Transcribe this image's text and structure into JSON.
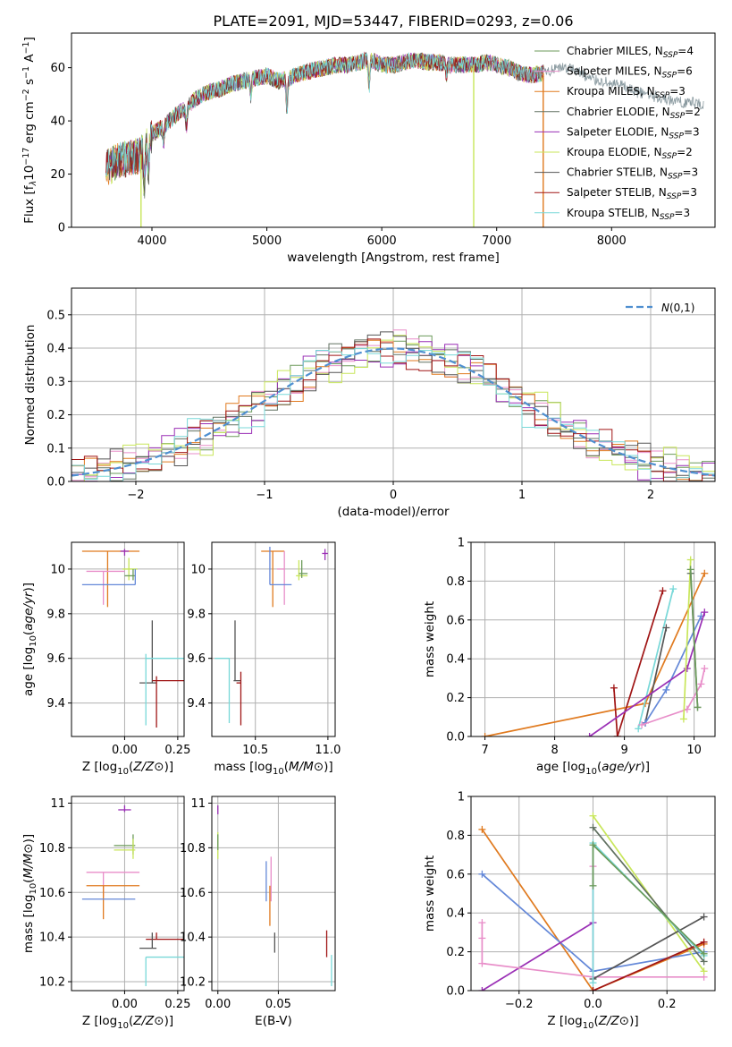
{
  "figure": {
    "title": "PLATE=2091, MJD=53447, FIBERID=0293, z=0.06"
  },
  "colors": {
    "Chabrier MILES": "#6b9a5a",
    "Salpeter MILES": "#e88ec9",
    "Kroupa MILES": "#e07a1f",
    "Chabrier ELODIE": "#607060",
    "Salpeter ELODIE": "#9a2fb5",
    "Kroupa ELODIE": "#c8e65a",
    "Chabrier STELIB": "#555555",
    "Salpeter STELIB": "#a01515",
    "Kroupa STELIB": "#78d8d8",
    "extra_blue": "#6488d8",
    "normal_dashed": "#4f8fd0"
  },
  "chart_data": [
    {
      "id": "spectrum",
      "type": "line",
      "title": "PLATE=2091, MJD=53447, FIBERID=0293, z=0.06",
      "xlabel": "wavelength [Angstrom, rest frame]",
      "ylabel_parts": [
        "Flux [f",
        "λ",
        "10",
        "−17",
        " erg cm",
        "−2",
        " s",
        "−1",
        " A",
        "−1",
        "]"
      ],
      "xlim": [
        3300,
        8900
      ],
      "ylim": [
        0,
        73
      ],
      "xticks": [
        4000,
        5000,
        6000,
        7000,
        8000
      ],
      "yticks": [
        0,
        20,
        40,
        60
      ],
      "grid": false,
      "legend_position": "top-right",
      "legend": [
        {
          "model": "Chabrier MILES",
          "n_ssp": 4
        },
        {
          "model": "Salpeter MILES",
          "n_ssp": 6
        },
        {
          "model": "Kroupa MILES",
          "n_ssp": 3
        },
        {
          "model": "Chabrier ELODIE",
          "n_ssp": 2
        },
        {
          "model": "Salpeter ELODIE",
          "n_ssp": 3
        },
        {
          "model": "Kroupa ELODIE",
          "n_ssp": 2
        },
        {
          "model": "Chabrier STELIB",
          "n_ssp": 3
        },
        {
          "model": "Salpeter STELIB",
          "n_ssp": 3
        },
        {
          "model": "Kroupa STELIB",
          "n_ssp": 3
        }
      ],
      "legend_ssp_label": {
        "prefix": "N",
        "sub": "SSP",
        "eq": "="
      },
      "continuum": {
        "x": [
          3600,
          3700,
          3800,
          3900,
          4000,
          4100,
          4200,
          4300,
          4400,
          4500,
          4600,
          4700,
          4800,
          4900,
          5000,
          5100,
          5200,
          5300,
          5400,
          5500,
          5600,
          5700,
          5800,
          5900,
          6000,
          6100,
          6200,
          6300,
          6400,
          6500,
          6600,
          6700,
          6800,
          6900,
          7000,
          7100,
          7200,
          7300,
          7400,
          7500,
          7600,
          7700,
          7800,
          7900,
          8000,
          8100,
          8200,
          8300,
          8400,
          8500,
          8600,
          8700,
          8800
        ],
        "y": [
          22,
          25,
          26,
          27,
          35,
          38,
          42,
          45,
          49,
          51,
          52,
          54,
          55,
          56,
          57,
          55,
          56,
          58,
          59,
          60,
          61,
          61,
          62,
          63,
          61,
          61,
          62,
          63,
          62,
          62,
          61,
          61,
          61,
          62,
          61,
          60,
          58,
          57,
          58,
          59,
          60,
          59,
          56,
          55,
          54,
          53,
          51,
          50,
          49,
          48,
          47,
          47,
          46
        ]
      },
      "absorption_features": [
        {
          "x": 3933,
          "depth": 14
        },
        {
          "x": 3968,
          "depth": 12
        },
        {
          "x": 4102,
          "depth": 6
        },
        {
          "x": 4300,
          "depth": 7
        },
        {
          "x": 4861,
          "depth": 6
        },
        {
          "x": 5175,
          "depth": 11
        },
        {
          "x": 5890,
          "depth": 10
        },
        {
          "x": 6563,
          "depth": 4
        }
      ],
      "model_dropouts": [
        {
          "model": "Kroupa ELODIE",
          "x": 3905
        },
        {
          "model": "Kroupa ELODIE",
          "x": 6800
        },
        {
          "model": "Kroupa MILES",
          "x": 7405
        }
      ],
      "data_end_x": 7410,
      "data_tail_x_end": 8800
    },
    {
      "id": "residuals",
      "type": "histogram",
      "xlabel": "(data-model)/error",
      "ylabel": "Normed distribution",
      "xlim": [
        -2.5,
        2.5
      ],
      "ylim": [
        0,
        0.58
      ],
      "xticks": [
        -2,
        -1,
        0,
        1,
        2
      ],
      "yticks": [
        0,
        0.1,
        0.2,
        0.3,
        0.4,
        0.5
      ],
      "grid": true,
      "legend_position": "top-right",
      "legend_label": "N(0,1)",
      "bin_width": 0.1,
      "bin_start": -2.5,
      "histogram_jitter": [
        {
          "model": "Chabrier MILES",
          "phase": 0.3,
          "amp": 0.03
        },
        {
          "model": "Salpeter MILES",
          "phase": 1.7,
          "amp": 0.035
        },
        {
          "model": "Kroupa MILES",
          "phase": 2.9,
          "amp": 0.04
        },
        {
          "model": "Chabrier ELODIE",
          "phase": 4.1,
          "amp": 0.03
        },
        {
          "model": "Salpeter ELODIE",
          "phase": 5.3,
          "amp": 0.04
        },
        {
          "model": "Kroupa ELODIE",
          "phase": 0.9,
          "amp": 0.045
        },
        {
          "model": "Chabrier STELIB",
          "phase": 2.2,
          "amp": 0.035
        },
        {
          "model": "Salpeter STELIB",
          "phase": 3.6,
          "amp": 0.04
        },
        {
          "model": "Kroupa STELIB",
          "phase": 4.8,
          "amp": 0.045
        }
      ]
    },
    {
      "id": "age_vs_Z",
      "type": "errorbar",
      "xlabel": "Z [log10(Z/Z⊙)]",
      "ylabel": "age  [log10(age/yr)]",
      "xlim": [
        -0.25,
        0.28
      ],
      "ylim": [
        9.25,
        10.12
      ],
      "xticks": [
        0.0,
        0.25
      ],
      "xtick_labels": [
        "0.00",
        "0.25"
      ],
      "yticks": [
        9.4,
        9.6,
        9.8,
        10.0
      ],
      "grid": true,
      "points": [
        {
          "model": "Kroupa MILES",
          "x": -0.08,
          "y": 10.08,
          "xlo": -0.2,
          "xhi": 0.07,
          "ylo": 9.83,
          "yhi": 10.08
        },
        {
          "model": "Salpeter ELODIE",
          "x": 0.0,
          "y": 10.08,
          "xlo": -0.02,
          "xhi": 0.02,
          "ylo": 10.06,
          "yhi": 10.09
        },
        {
          "model": "Salpeter MILES",
          "x": -0.1,
          "y": 9.99,
          "xlo": -0.18,
          "xhi": 0.0,
          "ylo": 9.84,
          "yhi": 9.99
        },
        {
          "model": "Kroupa ELODIE",
          "x": 0.02,
          "y": 10.0,
          "xlo": -0.01,
          "xhi": 0.06,
          "ylo": 9.95,
          "yhi": 10.05
        },
        {
          "model": "Chabrier MILES",
          "x": 0.04,
          "y": 9.97,
          "xlo": 0.0,
          "xhi": 0.05,
          "ylo": 9.95,
          "yhi": 10.0
        },
        {
          "model": "extra_blue",
          "x": 0.05,
          "y": 9.93,
          "xlo": -0.2,
          "xhi": 0.05,
          "ylo": 9.93,
          "yhi": 10.0
        },
        {
          "model": "Chabrier STELIB",
          "x": 0.13,
          "y": 9.49,
          "xlo": 0.07,
          "xhi": 0.15,
          "ylo": 9.49,
          "yhi": 9.77
        },
        {
          "model": "Salpeter STELIB",
          "x": 0.15,
          "y": 9.5,
          "xlo": 0.13,
          "xhi": 0.28,
          "ylo": 9.29,
          "yhi": 9.52
        },
        {
          "model": "Kroupa STELIB",
          "x": 0.1,
          "y": 9.6,
          "xlo": 0.1,
          "xhi": 0.28,
          "ylo": 9.3,
          "yhi": 9.62
        }
      ]
    },
    {
      "id": "age_vs_mass",
      "type": "errorbar",
      "xlabel": "mass [log10(M/M⊙)]",
      "ylabel": "",
      "xlim": [
        10.2,
        11.05
      ],
      "ylim": [
        9.25,
        10.12
      ],
      "xticks": [
        10.5,
        11.0
      ],
      "xtick_labels": [
        "10.5",
        "11.0"
      ],
      "yticks": [
        9.4,
        9.6,
        9.8,
        10.0
      ],
      "grid": true,
      "points": [
        {
          "model": "Kroupa MILES",
          "x": 10.62,
          "y": 10.08,
          "xlo": 10.54,
          "xhi": 10.7,
          "ylo": 9.83,
          "yhi": 10.08
        },
        {
          "model": "Salpeter MILES",
          "x": 10.7,
          "y": 10.0,
          "xlo": 10.65,
          "xhi": 10.7,
          "ylo": 9.84,
          "yhi": 10.08
        },
        {
          "model": "extra_blue",
          "x": 10.6,
          "y": 9.93,
          "xlo": 10.6,
          "xhi": 10.75,
          "ylo": 9.93,
          "yhi": 10.1
        },
        {
          "model": "Kroupa ELODIE",
          "x": 10.8,
          "y": 9.97,
          "xlo": 10.78,
          "xhi": 10.86,
          "ylo": 9.95,
          "yhi": 10.04
        },
        {
          "model": "Chabrier MILES",
          "x": 10.82,
          "y": 9.98,
          "xlo": 10.8,
          "xhi": 10.86,
          "ylo": 9.96,
          "yhi": 10.04
        },
        {
          "model": "Salpeter ELODIE",
          "x": 10.98,
          "y": 10.07,
          "xlo": 10.96,
          "xhi": 11.0,
          "ylo": 10.04,
          "yhi": 10.09
        },
        {
          "model": "Chabrier STELIB",
          "x": 10.36,
          "y": 9.5,
          "xlo": 10.35,
          "xhi": 10.4,
          "ylo": 9.5,
          "yhi": 9.77
        },
        {
          "model": "Salpeter STELIB",
          "x": 10.4,
          "y": 9.49,
          "xlo": 10.37,
          "xhi": 10.4,
          "ylo": 9.3,
          "yhi": 9.54
        },
        {
          "model": "Kroupa STELIB",
          "x": 10.32,
          "y": 9.6,
          "xlo": 10.22,
          "xhi": 10.32,
          "ylo": 9.31,
          "yhi": 9.6
        }
      ]
    },
    {
      "id": "massweight_vs_age",
      "type": "line",
      "xlabel": "age  [log10(age/yr)]",
      "ylabel": "mass weight",
      "xlim": [
        6.8,
        10.3
      ],
      "ylim": [
        0,
        1.0
      ],
      "xticks": [
        7,
        8,
        9,
        10
      ],
      "yticks": [
        0,
        0.2,
        0.4,
        0.6,
        0.8,
        1.0
      ],
      "grid": true,
      "series": [
        {
          "model": "Kroupa MILES",
          "x": [
            7.0,
            9.3,
            10.15
          ],
          "y": [
            0.0,
            0.17,
            0.84
          ]
        },
        {
          "model": "Salpeter STELIB",
          "x": [
            8.9,
            9.55
          ],
          "y": [
            0.0,
            0.75
          ]
        },
        {
          "model": "Salpeter STELIB",
          "x": [
            8.85,
            8.9
          ],
          "y": [
            0.25,
            0.0
          ]
        },
        {
          "model": "Kroupa STELIB",
          "x": [
            9.2,
            9.7
          ],
          "y": [
            0.04,
            0.76
          ]
        },
        {
          "model": "Chabrier STELIB",
          "x": [
            9.3,
            9.6
          ],
          "y": [
            0.07,
            0.56
          ]
        },
        {
          "model": "extra_blue",
          "x": [
            9.3,
            9.6,
            10.1
          ],
          "y": [
            0.07,
            0.24,
            0.62
          ]
        },
        {
          "model": "Salpeter ELODIE",
          "x": [
            8.5,
            9.9,
            10.15
          ],
          "y": [
            0.0,
            0.35,
            0.64
          ]
        },
        {
          "model": "Salpeter MILES",
          "x": [
            9.25,
            9.9,
            10.1,
            10.15
          ],
          "y": [
            0.06,
            0.14,
            0.27,
            0.35
          ]
        },
        {
          "model": "Kroupa ELODIE",
          "x": [
            9.85,
            9.95
          ],
          "y": [
            0.09,
            0.91
          ]
        },
        {
          "model": "Chabrier ELODIE",
          "x": [
            9.95,
            10.05
          ],
          "y": [
            0.84,
            0.15
          ]
        },
        {
          "model": "Chabrier MILES",
          "x": [
            9.95,
            10.05
          ],
          "y": [
            0.86,
            0.15
          ]
        }
      ]
    },
    {
      "id": "mass_vs_Z",
      "type": "errorbar",
      "xlabel": "Z [log10(Z/Z⊙)]",
      "ylabel": "mass [log10(M/M⊙)]",
      "xlim": [
        -0.25,
        0.28
      ],
      "ylim": [
        10.16,
        11.03
      ],
      "xticks": [
        0.0,
        0.25
      ],
      "xtick_labels": [
        "0.00",
        "0.25"
      ],
      "yticks": [
        10.2,
        10.4,
        10.6,
        10.8,
        11.0
      ],
      "grid": true,
      "points": [
        {
          "model": "Salpeter ELODIE",
          "x": 0.0,
          "y": 10.97,
          "xlo": -0.03,
          "xhi": 0.03,
          "ylo": 10.96,
          "yhi": 10.99
        },
        {
          "model": "Chabrier MILES",
          "x": 0.04,
          "y": 10.81,
          "xlo": -0.05,
          "xhi": 0.05,
          "ylo": 10.77,
          "yhi": 10.86
        },
        {
          "model": "Kroupa ELODIE",
          "x": 0.04,
          "y": 10.79,
          "xlo": -0.05,
          "xhi": 0.05,
          "ylo": 10.75,
          "yhi": 10.84
        },
        {
          "model": "Salpeter MILES",
          "x": -0.1,
          "y": 10.69,
          "xlo": -0.18,
          "xhi": 0.07,
          "ylo": 10.58,
          "yhi": 10.69
        },
        {
          "model": "Kroupa MILES",
          "x": -0.1,
          "y": 10.63,
          "xlo": -0.18,
          "xhi": 0.07,
          "ylo": 10.48,
          "yhi": 10.63
        },
        {
          "model": "extra_blue",
          "x": -0.1,
          "y": 10.57,
          "xlo": -0.2,
          "xhi": 0.05,
          "ylo": 10.57,
          "yhi": 10.57
        },
        {
          "model": "Salpeter STELIB",
          "x": 0.15,
          "y": 10.39,
          "xlo": 0.1,
          "xhi": 0.28,
          "ylo": 10.39,
          "yhi": 10.42
        },
        {
          "model": "Chabrier STELIB",
          "x": 0.13,
          "y": 10.35,
          "xlo": 0.07,
          "xhi": 0.15,
          "ylo": 10.35,
          "yhi": 10.42
        },
        {
          "model": "Kroupa STELIB",
          "x": 0.1,
          "y": 10.31,
          "xlo": 0.1,
          "xhi": 0.28,
          "ylo": 10.18,
          "yhi": 10.31
        }
      ]
    },
    {
      "id": "mass_vs_EBV",
      "type": "errorbar",
      "xlabel": "E(B-V)",
      "ylabel": "",
      "xlim": [
        -0.005,
        0.097
      ],
      "ylim": [
        10.16,
        11.03
      ],
      "xticks": [
        0.0,
        0.05
      ],
      "xtick_labels": [
        "0.00",
        "0.05"
      ],
      "yticks": [
        10.2,
        10.4,
        10.6,
        10.8,
        11.0
      ],
      "grid": true,
      "points": [
        {
          "model": "Salpeter ELODIE",
          "x": 0.0,
          "y": 10.97,
          "ylo": 10.95,
          "yhi": 10.99
        },
        {
          "model": "Kroupa ELODIE",
          "x": 0.0,
          "y": 10.82,
          "ylo": 10.75,
          "yhi": 10.87
        },
        {
          "model": "Chabrier MILES",
          "x": 0.0,
          "y": 10.83,
          "ylo": 10.79,
          "yhi": 10.86
        },
        {
          "model": "Salpeter MILES",
          "x": 0.044,
          "y": 10.71,
          "ylo": 10.56,
          "yhi": 10.76
        },
        {
          "model": "extra_blue",
          "x": 0.04,
          "y": 10.65,
          "ylo": 10.56,
          "yhi": 10.74
        },
        {
          "model": "Kroupa MILES",
          "x": 0.043,
          "y": 10.63,
          "ylo": 10.45,
          "yhi": 10.63
        },
        {
          "model": "Chabrier STELIB",
          "x": 0.047,
          "y": 10.37,
          "ylo": 10.33,
          "yhi": 10.42
        },
        {
          "model": "Salpeter STELIB",
          "x": 0.09,
          "y": 10.37,
          "ylo": 10.31,
          "yhi": 10.43
        },
        {
          "model": "Kroupa STELIB",
          "x": 0.094,
          "y": 10.26,
          "ylo": 10.18,
          "yhi": 10.32
        }
      ]
    },
    {
      "id": "massweight_vs_Z",
      "type": "line",
      "xlabel": "Z [log10(Z/Z⊙)]",
      "ylabel": "mass weight",
      "xlim": [
        -0.33,
        0.33
      ],
      "ylim": [
        0,
        1.0
      ],
      "xticks": [
        -0.2,
        0.0,
        0.2
      ],
      "xtick_labels": [
        "−0.2",
        "0.0",
        "0.2"
      ],
      "yticks": [
        0,
        0.2,
        0.4,
        0.6,
        0.8,
        1.0
      ],
      "grid": true,
      "series": [
        {
          "model": "Kroupa MILES",
          "x": [
            -0.3,
            0.0,
            0.3
          ],
          "y": [
            0.83,
            0.0,
            0.24
          ]
        },
        {
          "model": "extra_blue",
          "x": [
            -0.3,
            0.0,
            0.3
          ],
          "y": [
            0.6,
            0.1,
            0.2
          ]
        },
        {
          "model": "Salpeter ELODIE",
          "x": [
            -0.3,
            0.0
          ],
          "y": [
            0.0,
            0.35
          ]
        },
        {
          "model": "Salpeter MILES",
          "x": [
            -0.3,
            -0.3,
            -0.3,
            0.0,
            0.0,
            0.0,
            0.3
          ],
          "y": [
            0.35,
            0.27,
            0.14,
            0.07,
            0.64,
            0.07,
            0.07
          ]
        },
        {
          "model": "Kroupa ELODIE",
          "x": [
            0.0,
            0.3
          ],
          "y": [
            0.9,
            0.1
          ]
        },
        {
          "model": "Chabrier ELODIE",
          "x": [
            0.0,
            0.3
          ],
          "y": [
            0.84,
            0.15
          ]
        },
        {
          "model": "Chabrier STELIB",
          "x": [
            0.0,
            0.3
          ],
          "y": [
            0.06,
            0.38
          ]
        },
        {
          "model": "Salpeter STELIB",
          "x": [
            0.0,
            0.3
          ],
          "y": [
            0.0,
            0.25
          ]
        },
        {
          "model": "Kroupa STELIB",
          "x": [
            0.0,
            0.0,
            0.3
          ],
          "y": [
            0.04,
            0.76,
            0.18
          ]
        },
        {
          "model": "Chabrier MILES",
          "x": [
            0.0,
            0.0,
            0.3
          ],
          "y": [
            0.54,
            0.75,
            0.19
          ]
        }
      ]
    }
  ]
}
